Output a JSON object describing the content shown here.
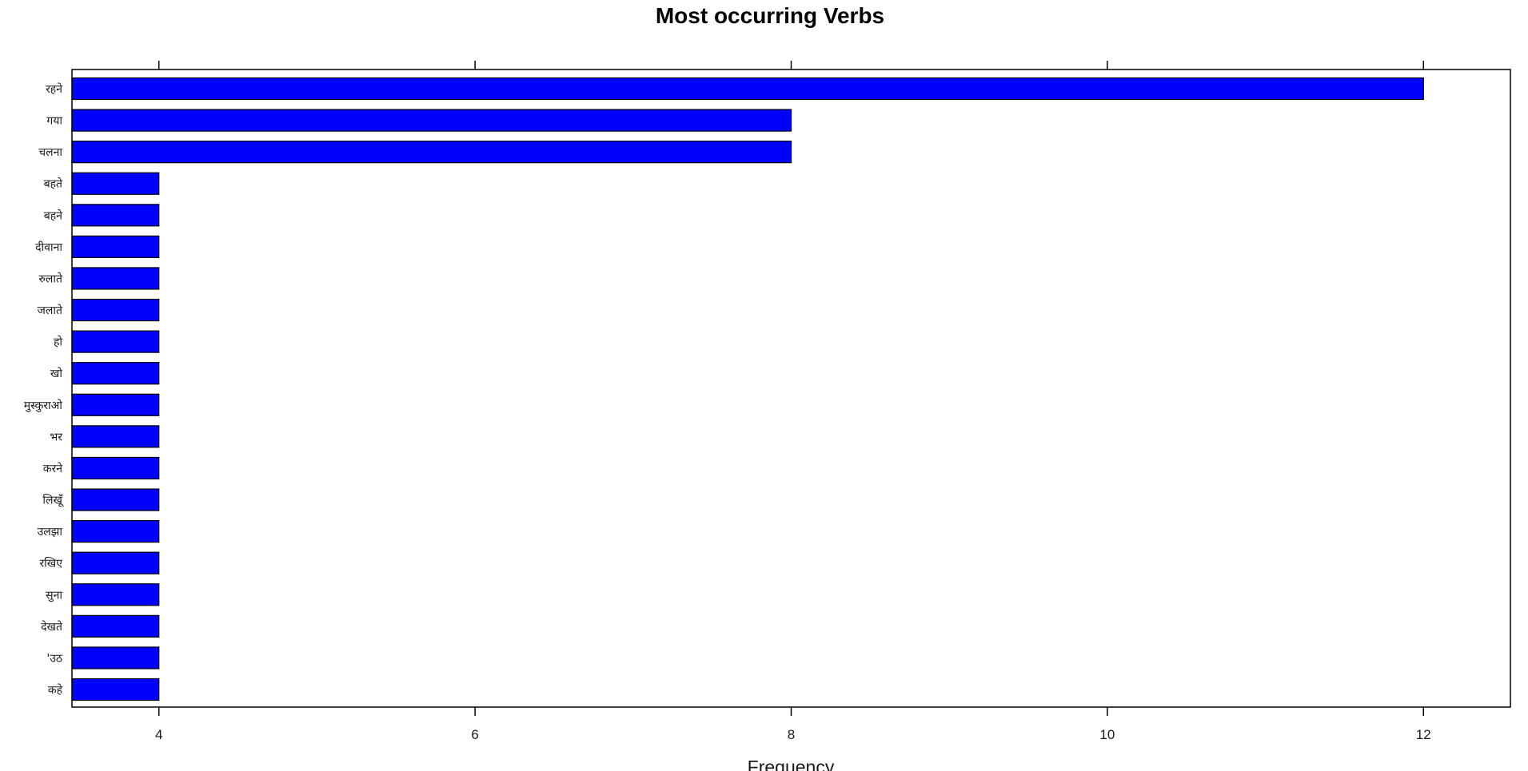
{
  "chart_data": {
    "type": "bar",
    "orientation": "horizontal",
    "title": "Most occurring Verbs",
    "xlabel": "Frequency",
    "ylabel": "",
    "categories": [
      "रहने",
      "गया",
      "चलना",
      "बहते",
      "बहने",
      "दीवाना",
      "रुलाते",
      "जलाते",
      "हो",
      "खो",
      "मुस्कुराओ",
      "भर",
      "करने",
      "लिखूँ",
      "उलझा",
      "रखिए",
      "सुना",
      "देखते",
      "'उठ",
      "कहे"
    ],
    "values": [
      12,
      8,
      8,
      4,
      4,
      4,
      4,
      4,
      4,
      4,
      4,
      4,
      4,
      4,
      4,
      4,
      4,
      4,
      4,
      4
    ],
    "xlim": [
      3.45,
      12.55
    ],
    "xticks": [
      4,
      6,
      8,
      10,
      12
    ],
    "grid": false,
    "legend": "none",
    "bar_color": "#0000ff",
    "bar_edge_color": "#000000"
  }
}
